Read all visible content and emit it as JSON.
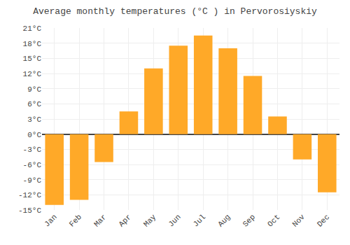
{
  "chart_data": {
    "type": "bar",
    "title": "Average monthly temperatures (°C ) in Pervorosiyskiy",
    "categories": [
      "Jan",
      "Feb",
      "Mar",
      "Apr",
      "May",
      "Jun",
      "Jul",
      "Aug",
      "Sep",
      "Oct",
      "Nov",
      "Dec"
    ],
    "values": [
      -14,
      -13,
      -5.5,
      4.5,
      13,
      17.5,
      19.5,
      17,
      11.5,
      3.5,
      -5,
      -11.5
    ],
    "color": "#FFA928",
    "ylim": [
      -15,
      21
    ],
    "yticks": [
      {
        "value": -15,
        "label": "-15°C"
      },
      {
        "value": -12,
        "label": "-12°C"
      },
      {
        "value": -9,
        "label": "-9°C"
      },
      {
        "value": -6,
        "label": "-6°C"
      },
      {
        "value": -3,
        "label": "-3°C"
      },
      {
        "value": 0,
        "label": "0°C"
      },
      {
        "value": 3,
        "label": "3°C"
      },
      {
        "value": 6,
        "label": "6°C"
      },
      {
        "value": 9,
        "label": "9°C"
      },
      {
        "value": 12,
        "label": "12°C"
      },
      {
        "value": 15,
        "label": "15°C"
      },
      {
        "value": 18,
        "label": "18°C"
      },
      {
        "value": 21,
        "label": "21°C"
      }
    ],
    "grid": true
  }
}
